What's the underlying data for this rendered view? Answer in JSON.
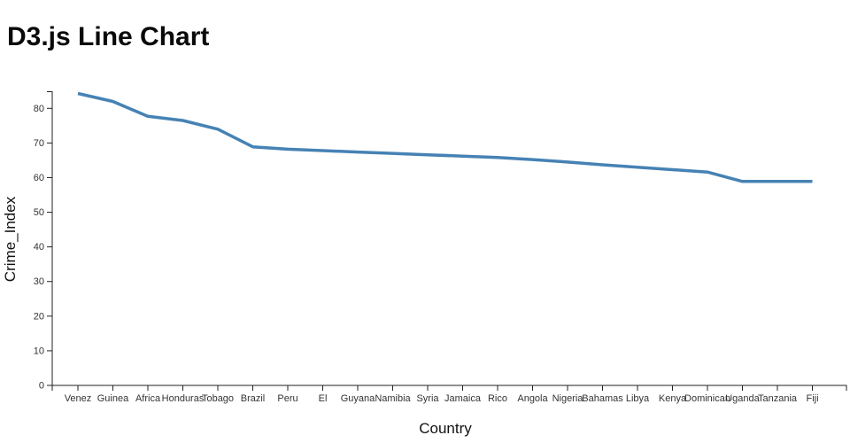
{
  "page": {
    "title": "D3.js Line Chart"
  },
  "chart_data": {
    "type": "line",
    "title": "D3.js Line Chart",
    "xlabel": "Country",
    "ylabel": "Crime_Index",
    "categories": [
      "Venez",
      "Guinea",
      "Africa",
      "Honduras",
      "Tobago",
      "Brazil",
      "Peru",
      "El",
      "Guyana",
      "Namibia",
      "Syria",
      "Jamaica",
      "Rico",
      "Angola",
      "Nigeria",
      "Bahamas",
      "Libya",
      "Kenya",
      "Dominican",
      "Uganda",
      "Tanzania",
      "Fiji"
    ],
    "values": [
      84.3,
      82.0,
      77.7,
      76.5,
      74.0,
      68.9,
      68.2,
      67.8,
      67.4,
      67.0,
      66.6,
      66.2,
      65.8,
      65.2,
      64.5,
      63.7,
      63.0,
      62.3,
      61.6,
      58.9,
      58.9,
      58.9
    ],
    "y_ticks": [
      0,
      10,
      20,
      30,
      40,
      50,
      60,
      70,
      80
    ],
    "ylim": [
      0,
      84.7
    ],
    "grid": false,
    "legend": "none",
    "line_color": "#4682b4",
    "axis_color": "#222222",
    "background": "#ffffff"
  }
}
